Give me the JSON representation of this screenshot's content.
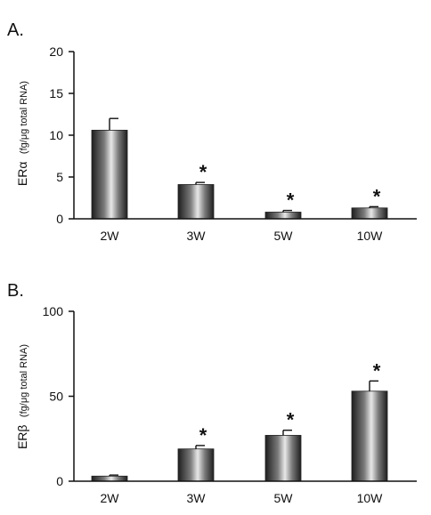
{
  "chart_data": [
    {
      "panel_label": "A.",
      "type": "bar",
      "categories": [
        "2W",
        "3W",
        "5W",
        "10W"
      ],
      "values": [
        10.6,
        4.1,
        0.8,
        1.3
      ],
      "errors": [
        1.4,
        0.25,
        0.2,
        0.15
      ],
      "significant": [
        false,
        true,
        true,
        true
      ],
      "significance_marker": "*",
      "ylabel_main": "ERα",
      "ylabel_unit": "(fg/μg total RNA)",
      "ylim": [
        0,
        20
      ],
      "yticks": [
        0,
        5,
        10,
        15,
        20
      ],
      "grid": false,
      "bar_fill": "gradient-gray"
    },
    {
      "panel_label": "B.",
      "type": "bar",
      "categories": [
        "2W",
        "3W",
        "5W",
        "10W"
      ],
      "values": [
        3,
        19,
        27,
        53
      ],
      "errors": [
        0.6,
        2.0,
        3.0,
        6.0
      ],
      "significant": [
        false,
        true,
        true,
        true
      ],
      "significance_marker": "*",
      "ylabel_main": "ERβ",
      "ylabel_unit": "(fg/μg total RNA)",
      "ylim": [
        0,
        100
      ],
      "yticks": [
        0,
        50,
        100
      ],
      "grid": false,
      "bar_fill": "gradient-gray"
    }
  ]
}
